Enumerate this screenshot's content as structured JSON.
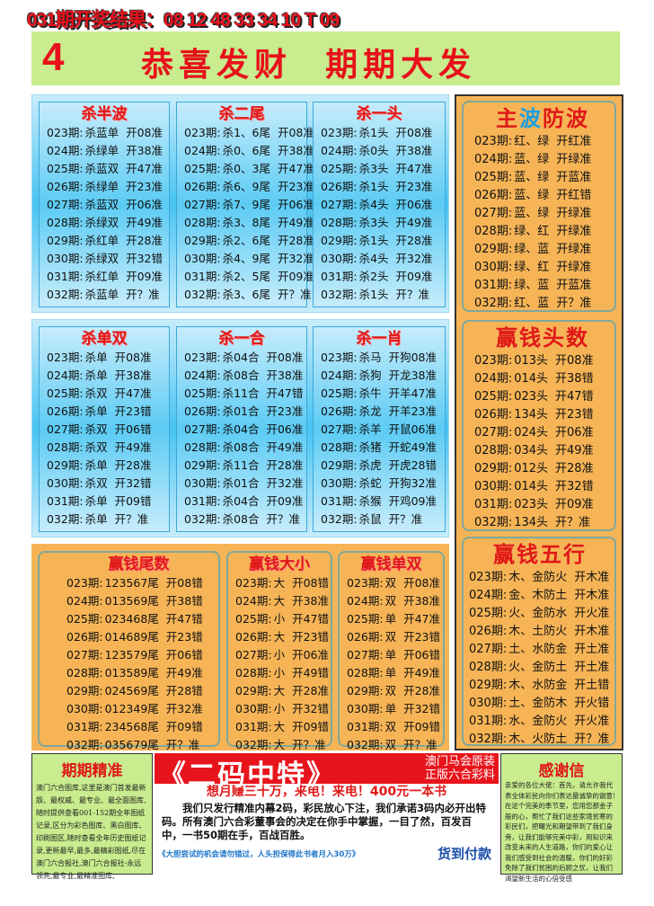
{
  "header": {
    "result": "031期开奖结果：08 12 48 33 34 10 T 09"
  },
  "banner": {
    "number": "4",
    "slogan": "恭喜发财  期期大发"
  },
  "tables": {
    "shabanbo": {
      "title": "杀半波",
      "rows": [
        {
          "p": "023期:",
          "k": "杀蓝单",
          "r": "开08准"
        },
        {
          "p": "024期:",
          "k": "杀绿单",
          "r": "开38准"
        },
        {
          "p": "025期:",
          "k": "杀蓝双",
          "r": "开47准"
        },
        {
          "p": "026期:",
          "k": "杀绿单",
          "r": "开23准"
        },
        {
          "p": "027期:",
          "k": "杀蓝双",
          "r": "开06准"
        },
        {
          "p": "028期:",
          "k": "杀绿双",
          "r": "开49准"
        },
        {
          "p": "029期:",
          "k": "杀红单",
          "r": "开28准"
        },
        {
          "p": "030期:",
          "k": "杀绿双",
          "r": "开32错"
        },
        {
          "p": "031期:",
          "k": "杀红单",
          "r": "开09准"
        },
        {
          "p": "032期:",
          "k": "杀蓝单",
          "r": "开？准"
        }
      ]
    },
    "shaerwei": {
      "title": "杀二尾",
      "rows": [
        {
          "p": "023期:",
          "k": "杀1、6尾",
          "r": "开08准"
        },
        {
          "p": "024期:",
          "k": "杀0、6尾",
          "r": "开38准"
        },
        {
          "p": "025期:",
          "k": "杀0、3尾",
          "r": "开47准"
        },
        {
          "p": "026期:",
          "k": "杀6、9尾",
          "r": "开23准"
        },
        {
          "p": "027期:",
          "k": "杀7、9尾",
          "r": "开06准"
        },
        {
          "p": "028期:",
          "k": "杀3、8尾",
          "r": "开49准"
        },
        {
          "p": "029期:",
          "k": "杀2、6尾",
          "r": "开28准"
        },
        {
          "p": "030期:",
          "k": "杀4、9尾",
          "r": "开32准"
        },
        {
          "p": "031期:",
          "k": "杀2、5尾",
          "r": "开09准"
        },
        {
          "p": "032期:",
          "k": "杀3、6尾",
          "r": "开？准"
        }
      ]
    },
    "shayitou": {
      "title": "杀一头",
      "rows": [
        {
          "p": "023期:",
          "k": "杀1头",
          "r": "开08准"
        },
        {
          "p": "024期:",
          "k": "杀0头",
          "r": "开38准"
        },
        {
          "p": "025期:",
          "k": "杀3头",
          "r": "开47准"
        },
        {
          "p": "026期:",
          "k": "杀1头",
          "r": "开23准"
        },
        {
          "p": "027期:",
          "k": "杀4头",
          "r": "开06准"
        },
        {
          "p": "028期:",
          "k": "杀3头",
          "r": "开49准"
        },
        {
          "p": "029期:",
          "k": "杀1头",
          "r": "开28准"
        },
        {
          "p": "030期:",
          "k": "杀4头",
          "r": "开32准"
        },
        {
          "p": "031期:",
          "k": "杀2头",
          "r": "开09准"
        },
        {
          "p": "032期:",
          "k": "杀1头",
          "r": "开？准"
        }
      ]
    },
    "shadanshuang": {
      "title": "杀单双",
      "rows": [
        {
          "p": "023期:",
          "k": "杀单",
          "r": "开08准"
        },
        {
          "p": "024期:",
          "k": "杀单",
          "r": "开38准"
        },
        {
          "p": "025期:",
          "k": "杀双",
          "r": "开47准"
        },
        {
          "p": "026期:",
          "k": "杀单",
          "r": "开23错"
        },
        {
          "p": "027期:",
          "k": "杀双",
          "r": "开06错"
        },
        {
          "p": "028期:",
          "k": "杀双",
          "r": "开49准"
        },
        {
          "p": "029期:",
          "k": "杀单",
          "r": "开28准"
        },
        {
          "p": "030期:",
          "k": "杀双",
          "r": "开32错"
        },
        {
          "p": "031期:",
          "k": "杀单",
          "r": "开09错"
        },
        {
          "p": "032期:",
          "k": "杀单",
          "r": "开？准"
        }
      ]
    },
    "shayihe": {
      "title": "杀一合",
      "rows": [
        {
          "p": "023期:",
          "k": "杀04合",
          "r": "开08准"
        },
        {
          "p": "024期:",
          "k": "杀08合",
          "r": "开38准"
        },
        {
          "p": "025期:",
          "k": "杀11合",
          "r": "开47错"
        },
        {
          "p": "026期:",
          "k": "杀01合",
          "r": "开23准"
        },
        {
          "p": "027期:",
          "k": "杀04合",
          "r": "开06准"
        },
        {
          "p": "028期:",
          "k": "杀08合",
          "r": "开49准"
        },
        {
          "p": "029期:",
          "k": "杀11合",
          "r": "开28准"
        },
        {
          "p": "030期:",
          "k": "杀01合",
          "r": "开32准"
        },
        {
          "p": "031期:",
          "k": "杀04合",
          "r": "开09准"
        },
        {
          "p": "032期:",
          "k": "杀08合",
          "r": "开？准"
        }
      ]
    },
    "shayixiao": {
      "title": "杀一肖",
      "rows": [
        {
          "p": "023期:",
          "k": "杀马",
          "r": "开狗08准"
        },
        {
          "p": "024期:",
          "k": "杀狗",
          "r": "开龙38准"
        },
        {
          "p": "025期:",
          "k": "杀牛",
          "r": "开羊47准"
        },
        {
          "p": "026期:",
          "k": "杀龙",
          "r": "开羊23准"
        },
        {
          "p": "027期:",
          "k": "杀羊",
          "r": "开鼠06准"
        },
        {
          "p": "028期:",
          "k": "杀猪",
          "r": "开蛇49准"
        },
        {
          "p": "029期:",
          "k": "杀虎",
          "r": "开虎28错"
        },
        {
          "p": "030期:",
          "k": "杀蛇",
          "r": "开狗32准"
        },
        {
          "p": "031期:",
          "k": "杀猴",
          "r": "开鸡09准"
        },
        {
          "p": "032期:",
          "k": "杀鼠",
          "r": "开？准"
        }
      ]
    },
    "yingqianweishu": {
      "title": "赢钱尾数",
      "rows": [
        {
          "p": "023期:",
          "k": "123567尾",
          "r": "开08错"
        },
        {
          "p": "024期:",
          "k": "013569尾",
          "r": "开38错"
        },
        {
          "p": "025期:",
          "k": "023468尾",
          "r": "开47错"
        },
        {
          "p": "026期:",
          "k": "014689尾",
          "r": "开23错"
        },
        {
          "p": "027期:",
          "k": "123579尾",
          "r": "开06错"
        },
        {
          "p": "028期:",
          "k": "013589尾",
          "r": "开49准"
        },
        {
          "p": "029期:",
          "k": "024569尾",
          "r": "开28错"
        },
        {
          "p": "030期:",
          "k": "012349尾",
          "r": "开32准"
        },
        {
          "p": "031期:",
          "k": "234568尾",
          "r": "开09错"
        },
        {
          "p": "032期:",
          "k": "035679尾",
          "r": "开？准"
        }
      ]
    },
    "yingqiandaxiao": {
      "title": "赢钱大小",
      "rows": [
        {
          "p": "023期:",
          "k": "大",
          "r": "开08错"
        },
        {
          "p": "024期:",
          "k": "大",
          "r": "开38准"
        },
        {
          "p": "025期:",
          "k": "小",
          "r": "开47错"
        },
        {
          "p": "026期:",
          "k": "大",
          "r": "开23错"
        },
        {
          "p": "027期:",
          "k": "小",
          "r": "开06准"
        },
        {
          "p": "028期:",
          "k": "小",
          "r": "开49错"
        },
        {
          "p": "029期:",
          "k": "大",
          "r": "开28准"
        },
        {
          "p": "030期:",
          "k": "小",
          "r": "开32错"
        },
        {
          "p": "031期:",
          "k": "大",
          "r": "开09错"
        },
        {
          "p": "032期:",
          "k": "大",
          "r": "开？准"
        }
      ]
    },
    "yingqiandanshuang": {
      "title": "赢钱单双",
      "rows": [
        {
          "p": "023期:",
          "k": "双",
          "r": "开08准"
        },
        {
          "p": "024期:",
          "k": "双",
          "r": "开38准"
        },
        {
          "p": "025期:",
          "k": "单",
          "r": "开47准"
        },
        {
          "p": "026期:",
          "k": "双",
          "r": "开23错"
        },
        {
          "p": "027期:",
          "k": "单",
          "r": "开06错"
        },
        {
          "p": "028期:",
          "k": "单",
          "r": "开49准"
        },
        {
          "p": "029期:",
          "k": "双",
          "r": "开28准"
        },
        {
          "p": "030期:",
          "k": "单",
          "r": "开32错"
        },
        {
          "p": "031期:",
          "k": "双",
          "r": "开09错"
        },
        {
          "p": "032期:",
          "k": "双",
          "r": "开？准"
        }
      ]
    },
    "zhubofangbo": {
      "title": "主波防波",
      "title_parts": [
        "主",
        "波",
        "防波"
      ],
      "rows": [
        {
          "p": "023期:",
          "k": "红、绿",
          "r": "开红准"
        },
        {
          "p": "024期:",
          "k": "蓝、绿",
          "r": "开绿准"
        },
        {
          "p": "025期:",
          "k": "蓝、绿",
          "r": "开蓝准"
        },
        {
          "p": "026期:",
          "k": "蓝、绿",
          "r": "开红错"
        },
        {
          "p": "027期:",
          "k": "蓝、绿",
          "r": "开绿准"
        },
        {
          "p": "028期:",
          "k": "绿、红",
          "r": "开绿准"
        },
        {
          "p": "029期:",
          "k": "绿、蓝",
          "r": "开绿准"
        },
        {
          "p": "030期:",
          "k": "绿、红",
          "r": "开绿准"
        },
        {
          "p": "031期:",
          "k": "绿、蓝",
          "r": "开蓝准"
        },
        {
          "p": "032期:",
          "k": "红、蓝",
          "r": "开？准"
        }
      ]
    },
    "yingqiantoushu": {
      "title": "赢钱头数",
      "rows": [
        {
          "p": "023期:",
          "k": "013头",
          "r": "开08准"
        },
        {
          "p": "024期:",
          "k": "014头",
          "r": "开38错"
        },
        {
          "p": "025期:",
          "k": "023头",
          "r": "开47错"
        },
        {
          "p": "026期:",
          "k": "134头",
          "r": "开23错"
        },
        {
          "p": "027期:",
          "k": "024头",
          "r": "开06准"
        },
        {
          "p": "028期:",
          "k": "034头",
          "r": "开49准"
        },
        {
          "p": "029期:",
          "k": "012头",
          "r": "开28准"
        },
        {
          "p": "030期:",
          "k": "014头",
          "r": "开32错"
        },
        {
          "p": "031期:",
          "k": "023头",
          "r": "开09准"
        },
        {
          "p": "032期:",
          "k": "134头",
          "r": "开？准"
        }
      ]
    },
    "yingqianwuxing": {
      "title": "赢钱五行",
      "rows": [
        {
          "p": "023期:",
          "k": "木、金防火",
          "r": "开木准"
        },
        {
          "p": "024期:",
          "k": "金、木防土",
          "r": "开木准"
        },
        {
          "p": "025期:",
          "k": "火、金防水",
          "r": "开火准"
        },
        {
          "p": "026期:",
          "k": "木、土防火",
          "r": "开木准"
        },
        {
          "p": "027期:",
          "k": "土、水防金",
          "r": "开土准"
        },
        {
          "p": "028期:",
          "k": "火、金防土",
          "r": "开土准"
        },
        {
          "p": "029期:",
          "k": "木、水防金",
          "r": "开土错"
        },
        {
          "p": "030期:",
          "k": "土、金防木",
          "r": "开火错"
        },
        {
          "p": "031期:",
          "k": "水、金防火",
          "r": "开火准"
        },
        {
          "p": "032期:",
          "k": "木、火防土",
          "r": "开？准"
        }
      ]
    }
  },
  "bottom": {
    "left": {
      "title": "期期精准",
      "text": "澳门六合图库,这里是澳门首发最新版、最权威、最专业、最全面图库,随时提供查看001-152期全年图纸记录,区分为彩色图库、黑白图库、印刷图区,随时查看全年历史图纸记录,更新最早,最多,最精彩图纸,尽在澳门六合报社,澳门六合报社-永远领先,最专业,最精准图库,"
    },
    "center": {
      "headline": "《二码中特》",
      "side1": "澳门马会原装",
      "side2": "正版六合彩料",
      "subline": "想月赚三十万，来电！来电！400元一本书",
      "body": "我们只发行精准内幕2码，彩民放心下注，我们承诺3码内必开出特码。所有澳门六合彩董事会的决定在你手中掌握，一目了然，百发百中，一书50期在手，百战百胜。",
      "footer": "《大胆尝试的机会请勿错过，人头担保得此书者月入30万》",
      "cod": "货到付款"
    },
    "right": {
      "title": "感谢信",
      "text": "亲爱的各位大佬：首先，请允许我代表全体彩民向你们表达最诚挚的谢意!在这个完美的季节里，您用您那金子般的心，帮忙了我们这些家境贫寒的彩民们，把曙光和期望带到了我们身旁，让我们能够完美中彩，用知识来改变未来的人生道路，你们的爱心让我们感受到社会的温暖，你们的好彩免除了我们贫困的后顾之忧，让我们渴望新生活的心倍受感"
    }
  },
  "colors": {
    "red": "#e01818",
    "blue_panel": "#46c3f2",
    "orange": "#f6b456",
    "green": "#c8ec8e",
    "wave_blue": "#1aa0e0"
  }
}
